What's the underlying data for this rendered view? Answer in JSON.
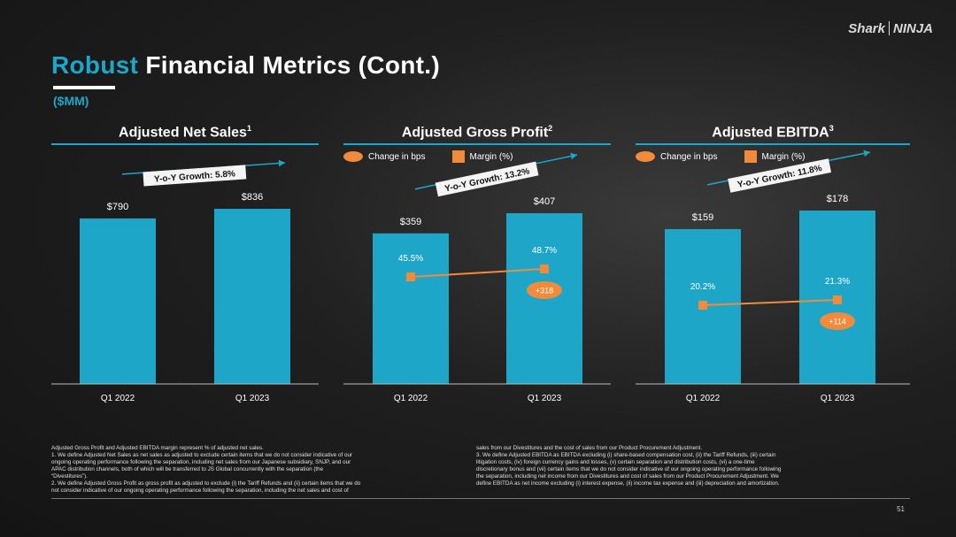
{
  "brand": {
    "logo_left": "Shark",
    "logo_right": "NINJA"
  },
  "title": {
    "accent": "Robust",
    "rest": " Financial Metrics (Cont.)"
  },
  "subtitle": "($MM)",
  "legend": {
    "change_label": "Change in bps",
    "margin_label": "Margin (%)"
  },
  "colors": {
    "bar": "#1ea6c9",
    "margin": "#f18a3a",
    "accent": "#1ea6c9"
  },
  "chart_data": [
    {
      "type": "bar",
      "title": "Adjusted Net Sales",
      "title_sup": "1",
      "categories": [
        "Q1 2022",
        "Q1 2023"
      ],
      "values": [
        790,
        836
      ],
      "value_labels": [
        "$790",
        "$836"
      ],
      "growth_label": "Y-o-Y Growth: 5.8%",
      "has_legend": false
    },
    {
      "type": "bar",
      "title": "Adjusted Gross Profit",
      "title_sup": "2",
      "categories": [
        "Q1 2022",
        "Q1 2023"
      ],
      "values": [
        359,
        407
      ],
      "value_labels": [
        "$359",
        "$407"
      ],
      "growth_label": "Y-o-Y Growth: 13.2%",
      "has_legend": true,
      "margin_values": [
        45.5,
        48.7
      ],
      "margin_labels": [
        "45.5%",
        "48.7%"
      ],
      "change_bps": "+318"
    },
    {
      "type": "bar",
      "title": "Adjusted EBITDA",
      "title_sup": "3",
      "categories": [
        "Q1 2022",
        "Q1 2023"
      ],
      "values": [
        159,
        178
      ],
      "value_labels": [
        "$159",
        "$178"
      ],
      "growth_label": "Y-o-Y Growth: 11.8%",
      "has_legend": true,
      "margin_values": [
        20.2,
        21.3
      ],
      "margin_labels": [
        "20.2%",
        "21.3%"
      ],
      "change_bps": "+114"
    }
  ],
  "footnotes": {
    "left": [
      "Adjusted Gross Profit and Adjusted EBITDA margin represent % of adjusted net sales.",
      "1.  We define Adjusted Net Sales as net sales as adjusted to exclude certain items that we do not consider indicative of our",
      "     ongoing operating performance following the separation, including net sales from our Japanese subsidiary, SNJP, and our",
      "     APAC distribution channels, both of which will be transferred to JS Global concurrently with the separation (the",
      "     “Divestitures”).",
      "2.  We define Adjusted Gross Profit as gross profit as adjusted to exclude (i) the Tariff Refunds and (ii) certain items that we do",
      "     not consider indicative of our ongoing operating performance following the separation, including the net sales and cost of"
    ],
    "right": [
      "     sales from our Divestitures and the cost of sales from our Product Procurement Adjustment.",
      "3.  We define Adjusted EBITDA as EBITDA excluding (i) share-based compensation cost, (ii) the Tariff Refunds, (iii) certain",
      "     litigation costs, (iv) foreign currency gains and losses, (v) certain separation and distribution costs, (vi) a one-time",
      "     discretionary bonus and (vii) certain items that we do not consider indicative of our ongoing operating performance following",
      "     the separation, including net income from our Divestitures and cost of sales from our Product Procurement Adjustment. We",
      "     define EBITDA as net income excluding (i) interest expense, (ii) income tax expense and (iii) depreciation and amortization."
    ]
  },
  "page_number": "51"
}
